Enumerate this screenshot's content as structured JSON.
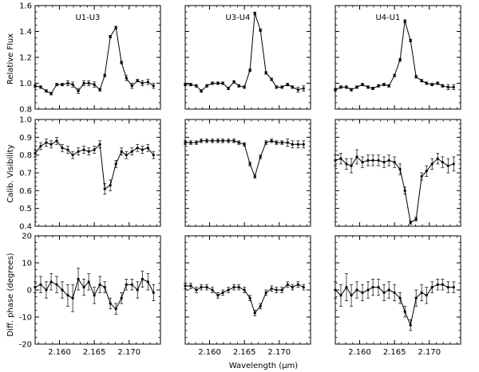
{
  "figure": {
    "xlabel": "Wavelength (μm)",
    "row_ylabels": [
      "Relative Flux",
      "Calib. Visibility",
      "Diff. phase (degrees)"
    ],
    "column_titles": [
      "U1-U3",
      "U3-U4",
      "U4-U1"
    ]
  },
  "chart_data": {
    "type": "line",
    "layout": "3 rows x 3 columns",
    "x": [
      2.1565,
      2.1573,
      2.1581,
      2.1588,
      2.1596,
      2.1604,
      2.1612,
      2.1619,
      2.1627,
      2.1635,
      2.1642,
      2.165,
      2.1658,
      2.1665,
      2.1673,
      2.1681,
      2.1689,
      2.1696,
      2.1704,
      2.1712,
      2.1719,
      2.1727,
      2.1735
    ],
    "xlim": [
      2.1565,
      2.1745
    ],
    "xticks": [
      2.16,
      2.165,
      2.17
    ],
    "xtick_labels": [
      "2.160",
      "2.165",
      "2.170"
    ],
    "xlabel": "Wavelength (μm)",
    "rows": [
      {
        "ylabel": "Relative Flux",
        "ylim": [
          0.8,
          1.6
        ],
        "yticks": [
          0.8,
          1.0,
          1.2,
          1.4,
          1.6
        ],
        "ytick_labels": [
          "0.8",
          "1.0",
          "1.2",
          "1.4",
          "1.6"
        ],
        "series": [
          {
            "panel": "U1-U3",
            "y": [
              0.98,
              0.97,
              0.94,
              0.92,
              0.99,
              0.99,
              1.0,
              0.99,
              0.94,
              1.0,
              1.0,
              0.99,
              0.95,
              1.06,
              1.36,
              1.43,
              1.16,
              1.04,
              0.98,
              1.02,
              1.0,
              1.01,
              0.98
            ],
            "err": [
              0.01,
              0.01,
              0.01,
              0.01,
              0.01,
              0.01,
              0.02,
              0.02,
              0.02,
              0.02,
              0.02,
              0.02,
              0.01,
              0.01,
              0.01,
              0.01,
              0.01,
              0.02,
              0.02,
              0.01,
              0.02,
              0.02,
              0.02
            ]
          },
          {
            "panel": "U3-U4",
            "y": [
              0.99,
              0.99,
              0.98,
              0.94,
              0.98,
              1.0,
              1.0,
              1.0,
              0.96,
              1.01,
              0.98,
              0.97,
              1.1,
              1.54,
              1.41,
              1.08,
              1.03,
              0.97,
              0.97,
              0.99,
              0.97,
              0.95,
              0.96
            ],
            "err": [
              0.01,
              0.01,
              0.01,
              0.01,
              0.01,
              0.01,
              0.01,
              0.01,
              0.01,
              0.01,
              0.01,
              0.01,
              0.01,
              0.01,
              0.01,
              0.01,
              0.01,
              0.01,
              0.01,
              0.01,
              0.01,
              0.02,
              0.02
            ]
          },
          {
            "panel": "U4-U1",
            "y": [
              0.95,
              0.97,
              0.97,
              0.95,
              0.97,
              0.99,
              0.97,
              0.96,
              0.98,
              0.99,
              0.98,
              1.06,
              1.18,
              1.48,
              1.33,
              1.05,
              1.02,
              1.0,
              0.99,
              1.0,
              0.98,
              0.97,
              0.97
            ],
            "err": [
              0.01,
              0.01,
              0.01,
              0.01,
              0.01,
              0.01,
              0.01,
              0.01,
              0.01,
              0.01,
              0.01,
              0.01,
              0.01,
              0.01,
              0.01,
              0.01,
              0.01,
              0.01,
              0.01,
              0.01,
              0.01,
              0.02,
              0.02
            ]
          }
        ]
      },
      {
        "ylabel": "Calib. Visibility",
        "ylim": [
          0.4,
          1.0
        ],
        "yticks": [
          0.4,
          0.5,
          0.6,
          0.7,
          0.8,
          0.9,
          1.0
        ],
        "ytick_labels": [
          "0.4",
          "0.5",
          "0.6",
          "0.7",
          "0.8",
          "0.9",
          "1.0"
        ],
        "series": [
          {
            "panel": "U1-U3",
            "y": [
              0.81,
              0.85,
              0.87,
              0.86,
              0.88,
              0.84,
              0.83,
              0.8,
              0.82,
              0.83,
              0.82,
              0.83,
              0.86,
              0.61,
              0.63,
              0.75,
              0.82,
              0.8,
              0.82,
              0.84,
              0.83,
              0.84,
              0.8
            ],
            "err": [
              0.02,
              0.02,
              0.02,
              0.02,
              0.02,
              0.02,
              0.02,
              0.02,
              0.02,
              0.02,
              0.02,
              0.02,
              0.02,
              0.03,
              0.03,
              0.02,
              0.02,
              0.02,
              0.02,
              0.02,
              0.02,
              0.02,
              0.02
            ]
          },
          {
            "panel": "U3-U4",
            "y": [
              0.87,
              0.87,
              0.87,
              0.88,
              0.88,
              0.88,
              0.88,
              0.88,
              0.88,
              0.88,
              0.87,
              0.86,
              0.75,
              0.68,
              0.79,
              0.87,
              0.88,
              0.87,
              0.87,
              0.87,
              0.86,
              0.86,
              0.86
            ],
            "err": [
              0.01,
              0.01,
              0.01,
              0.01,
              0.01,
              0.01,
              0.01,
              0.01,
              0.01,
              0.01,
              0.01,
              0.01,
              0.01,
              0.01,
              0.01,
              0.01,
              0.01,
              0.01,
              0.01,
              0.02,
              0.02,
              0.02,
              0.02
            ]
          },
          {
            "panel": "U4-U1",
            "y": [
              0.77,
              0.78,
              0.75,
              0.74,
              0.79,
              0.76,
              0.77,
              0.77,
              0.77,
              0.76,
              0.77,
              0.76,
              0.72,
              0.6,
              0.42,
              0.44,
              0.68,
              0.71,
              0.75,
              0.78,
              0.76,
              0.74,
              0.75
            ],
            "err": [
              0.03,
              0.03,
              0.03,
              0.04,
              0.04,
              0.03,
              0.03,
              0.03,
              0.03,
              0.03,
              0.03,
              0.03,
              0.03,
              0.02,
              0.01,
              0.01,
              0.02,
              0.03,
              0.03,
              0.03,
              0.03,
              0.04,
              0.04
            ]
          }
        ]
      },
      {
        "ylabel": "Diff. phase (degrees)",
        "ylim": [
          -20,
          20
        ],
        "yticks": [
          -20,
          -10,
          0,
          10,
          20
        ],
        "ytick_labels": [
          "-20",
          "-10",
          "0",
          "10",
          "20"
        ],
        "series": [
          {
            "panel": "U1-U3",
            "y": [
              1,
              2,
              0,
              3,
              2,
              0,
              -2,
              -3,
              4,
              1,
              3,
              -2,
              2,
              1,
              -5,
              -7,
              -3,
              2,
              2,
              0,
              4,
              3,
              -1
            ],
            "err": [
              2,
              3,
              3,
              3,
              3,
              3,
              4,
              5,
              4,
              3,
              3,
              3,
              3,
              2,
              2,
              2,
              2,
              2,
              2,
              3,
              3,
              3,
              3
            ]
          },
          {
            "panel": "U3-U4",
            "y": [
              1.5,
              1.5,
              0,
              1,
              1,
              0,
              -2,
              -1,
              0,
              1,
              1,
              0,
              -3,
              -8.5,
              -6,
              -1,
              0.5,
              0,
              0,
              2,
              1,
              2,
              1
            ],
            "err": [
              1,
              1,
              1,
              1,
              1,
              1,
              1,
              1,
              1,
              1,
              1,
              1,
              1,
              1,
              1,
              1,
              1,
              1,
              1,
              1,
              1,
              1,
              1
            ]
          },
          {
            "panel": "U4-U1",
            "y": [
              0,
              -2,
              1,
              -2,
              0,
              -1,
              0,
              1,
              1,
              -1,
              0,
              -1,
              -3,
              -8,
              -13,
              -3,
              -1,
              -2,
              1,
              2,
              2,
              1,
              1
            ],
            "err": [
              3,
              4,
              5,
              4,
              3,
              3,
              3,
              3,
              3,
              3,
              3,
              3,
              2,
              2,
              2,
              3,
              3,
              3,
              2,
              2,
              2,
              2,
              2
            ]
          }
        ]
      }
    ]
  }
}
